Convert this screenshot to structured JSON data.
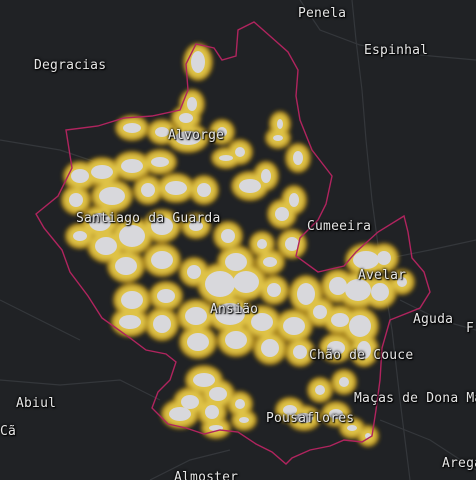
{
  "map": {
    "places": [
      {
        "id": "penela",
        "name": "Penela"
      },
      {
        "id": "espinhal",
        "name": "Espinhal"
      },
      {
        "id": "degracias",
        "name": "Degracias"
      },
      {
        "id": "alvorge",
        "name": "Alvorge"
      },
      {
        "id": "santiago-da-guarda",
        "name": "Santiago da Guarda"
      },
      {
        "id": "cumeeira",
        "name": "Cumeeira"
      },
      {
        "id": "avelar",
        "name": "Avelar"
      },
      {
        "id": "ansiao",
        "name": "Ansião"
      },
      {
        "id": "aguda",
        "name": "Aguda"
      },
      {
        "id": "chao-de-couce",
        "name": "Chão de Couce"
      },
      {
        "id": "abiul",
        "name": "Abiul"
      },
      {
        "id": "ca",
        "name": "Cã"
      },
      {
        "id": "macas-de-dona-maria",
        "name": "Maças de Dona Ma"
      },
      {
        "id": "pousaflores",
        "name": "Pousaflores"
      },
      {
        "id": "almoster",
        "name": "Almoster"
      },
      {
        "id": "arega",
        "name": "Arega"
      },
      {
        "id": "f-edge",
        "name": "F"
      }
    ],
    "colors": {
      "background": "#202225",
      "roads": "#34373b",
      "boundary": "#b0245e",
      "heat_core": "#d8d8dc",
      "heat_mid": "#e2c64a",
      "heat_outer": "#b58e1c"
    }
  }
}
